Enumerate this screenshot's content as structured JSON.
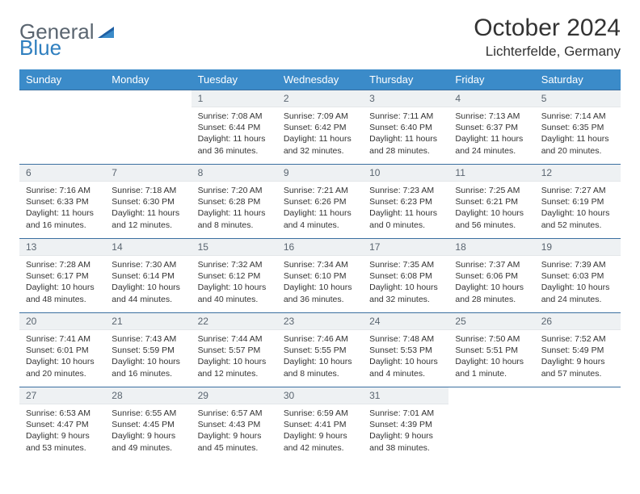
{
  "brand": {
    "word1": "General",
    "word2": "Blue"
  },
  "title": "October 2024",
  "location": "Lichterfelde, Germany",
  "colors": {
    "header_bg": "#3b8bc9",
    "header_text": "#ffffff",
    "daynum_bg": "#eef1f3",
    "daynum_text": "#5a6570",
    "row_border": "#3b6fa0",
    "body_text": "#333333",
    "logo_gray": "#5a6570",
    "logo_blue": "#2f7fbf"
  },
  "day_headers": [
    "Sunday",
    "Monday",
    "Tuesday",
    "Wednesday",
    "Thursday",
    "Friday",
    "Saturday"
  ],
  "weeks": [
    [
      null,
      null,
      {
        "n": "1",
        "sr": "7:08 AM",
        "ss": "6:44 PM",
        "dl": "11 hours and 36 minutes."
      },
      {
        "n": "2",
        "sr": "7:09 AM",
        "ss": "6:42 PM",
        "dl": "11 hours and 32 minutes."
      },
      {
        "n": "3",
        "sr": "7:11 AM",
        "ss": "6:40 PM",
        "dl": "11 hours and 28 minutes."
      },
      {
        "n": "4",
        "sr": "7:13 AM",
        "ss": "6:37 PM",
        "dl": "11 hours and 24 minutes."
      },
      {
        "n": "5",
        "sr": "7:14 AM",
        "ss": "6:35 PM",
        "dl": "11 hours and 20 minutes."
      }
    ],
    [
      {
        "n": "6",
        "sr": "7:16 AM",
        "ss": "6:33 PM",
        "dl": "11 hours and 16 minutes."
      },
      {
        "n": "7",
        "sr": "7:18 AM",
        "ss": "6:30 PM",
        "dl": "11 hours and 12 minutes."
      },
      {
        "n": "8",
        "sr": "7:20 AM",
        "ss": "6:28 PM",
        "dl": "11 hours and 8 minutes."
      },
      {
        "n": "9",
        "sr": "7:21 AM",
        "ss": "6:26 PM",
        "dl": "11 hours and 4 minutes."
      },
      {
        "n": "10",
        "sr": "7:23 AM",
        "ss": "6:23 PM",
        "dl": "11 hours and 0 minutes."
      },
      {
        "n": "11",
        "sr": "7:25 AM",
        "ss": "6:21 PM",
        "dl": "10 hours and 56 minutes."
      },
      {
        "n": "12",
        "sr": "7:27 AM",
        "ss": "6:19 PM",
        "dl": "10 hours and 52 minutes."
      }
    ],
    [
      {
        "n": "13",
        "sr": "7:28 AM",
        "ss": "6:17 PM",
        "dl": "10 hours and 48 minutes."
      },
      {
        "n": "14",
        "sr": "7:30 AM",
        "ss": "6:14 PM",
        "dl": "10 hours and 44 minutes."
      },
      {
        "n": "15",
        "sr": "7:32 AM",
        "ss": "6:12 PM",
        "dl": "10 hours and 40 minutes."
      },
      {
        "n": "16",
        "sr": "7:34 AM",
        "ss": "6:10 PM",
        "dl": "10 hours and 36 minutes."
      },
      {
        "n": "17",
        "sr": "7:35 AM",
        "ss": "6:08 PM",
        "dl": "10 hours and 32 minutes."
      },
      {
        "n": "18",
        "sr": "7:37 AM",
        "ss": "6:06 PM",
        "dl": "10 hours and 28 minutes."
      },
      {
        "n": "19",
        "sr": "7:39 AM",
        "ss": "6:03 PM",
        "dl": "10 hours and 24 minutes."
      }
    ],
    [
      {
        "n": "20",
        "sr": "7:41 AM",
        "ss": "6:01 PM",
        "dl": "10 hours and 20 minutes."
      },
      {
        "n": "21",
        "sr": "7:43 AM",
        "ss": "5:59 PM",
        "dl": "10 hours and 16 minutes."
      },
      {
        "n": "22",
        "sr": "7:44 AM",
        "ss": "5:57 PM",
        "dl": "10 hours and 12 minutes."
      },
      {
        "n": "23",
        "sr": "7:46 AM",
        "ss": "5:55 PM",
        "dl": "10 hours and 8 minutes."
      },
      {
        "n": "24",
        "sr": "7:48 AM",
        "ss": "5:53 PM",
        "dl": "10 hours and 4 minutes."
      },
      {
        "n": "25",
        "sr": "7:50 AM",
        "ss": "5:51 PM",
        "dl": "10 hours and 1 minute."
      },
      {
        "n": "26",
        "sr": "7:52 AM",
        "ss": "5:49 PM",
        "dl": "9 hours and 57 minutes."
      }
    ],
    [
      {
        "n": "27",
        "sr": "6:53 AM",
        "ss": "4:47 PM",
        "dl": "9 hours and 53 minutes."
      },
      {
        "n": "28",
        "sr": "6:55 AM",
        "ss": "4:45 PM",
        "dl": "9 hours and 49 minutes."
      },
      {
        "n": "29",
        "sr": "6:57 AM",
        "ss": "4:43 PM",
        "dl": "9 hours and 45 minutes."
      },
      {
        "n": "30",
        "sr": "6:59 AM",
        "ss": "4:41 PM",
        "dl": "9 hours and 42 minutes."
      },
      {
        "n": "31",
        "sr": "7:01 AM",
        "ss": "4:39 PM",
        "dl": "9 hours and 38 minutes."
      },
      null,
      null
    ]
  ]
}
